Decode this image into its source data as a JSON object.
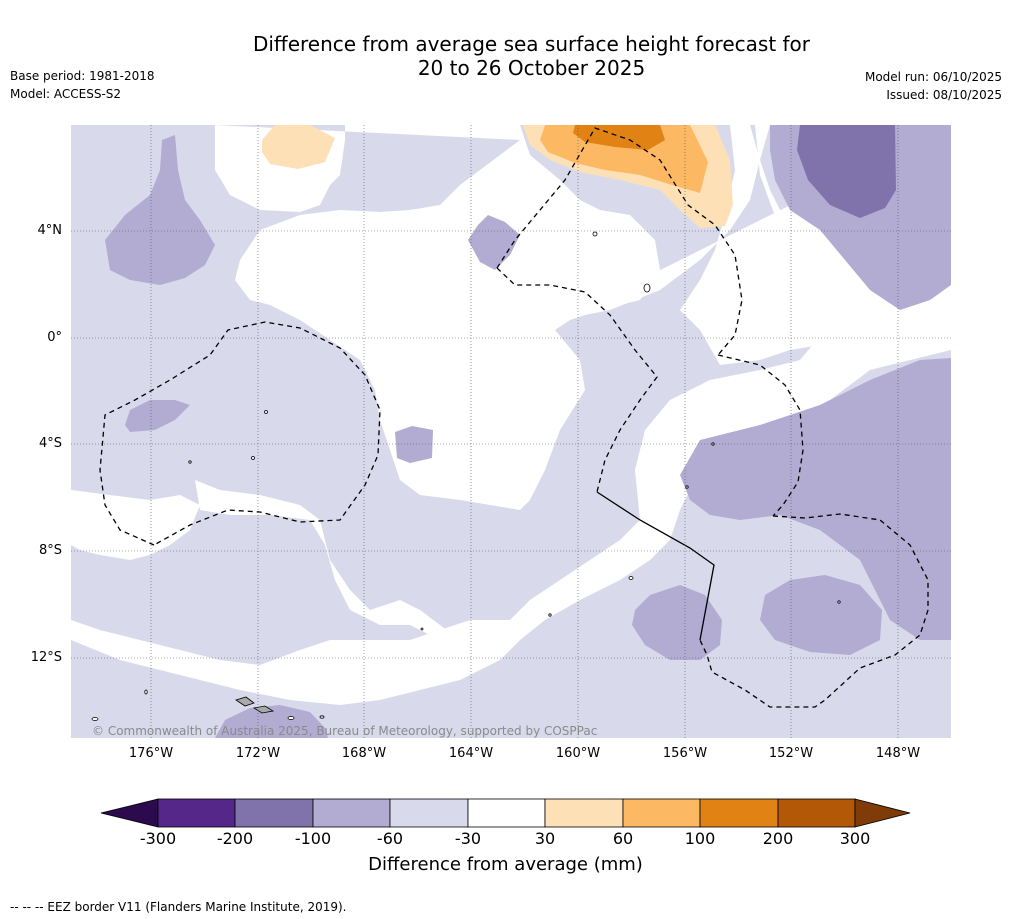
{
  "title": {
    "line1": "Difference from average sea surface height forecast for",
    "line2": "20 to 26 October 2025"
  },
  "meta_left": {
    "base_period": "Base period: 1981-2018",
    "model": "Model: ACCESS-S2"
  },
  "meta_right": {
    "model_run": "Model run: 06/10/2025",
    "issued": "Issued: 08/10/2025"
  },
  "map": {
    "lon_labels": [
      "176°W",
      "172°W",
      "168°W",
      "164°W",
      "160°W",
      "156°W",
      "152°W",
      "148°W"
    ],
    "lat_labels": [
      "4°N",
      "0°",
      "4°S",
      "8°S",
      "12°S"
    ],
    "copyright": "© Commonwealth of Australia 2025, Bureau of Meteorology, supported by COSPPac"
  },
  "colorbar": {
    "tick_labels": [
      "-300",
      "-200",
      "-100",
      "-60",
      "-30",
      "30",
      "60",
      "100",
      "200",
      "300"
    ],
    "title": "Difference from average (mm)",
    "colors": {
      "below_min": "#2d0a4e",
      "n300_200": "#542788",
      "n200_100": "#8073ac",
      "n100_60": "#b2abd2",
      "n60_30": "#d8daeb",
      "n30_30": "#ffffff",
      "p30_60": "#fee0b6",
      "p60_100": "#fdb863",
      "p100_200": "#e08214",
      "p200_300": "#b35806",
      "above_max": "#7f3b08"
    }
  },
  "footnote": "--  --  -- EEZ border V11 (Flanders Marine Institute, 2019)."
}
